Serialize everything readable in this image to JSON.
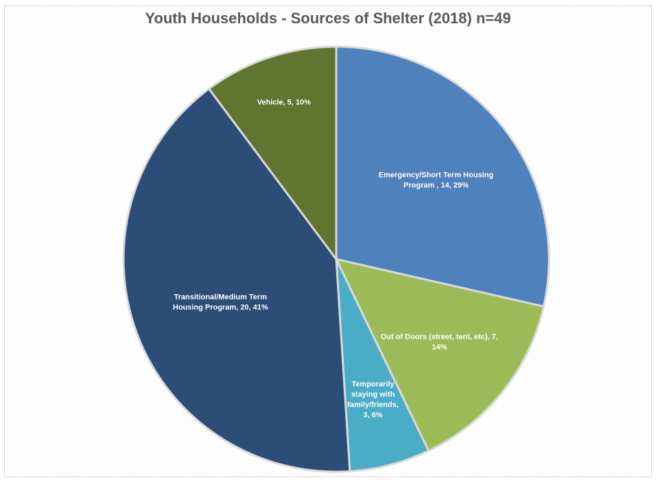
{
  "chart_data": {
    "type": "pie",
    "title": "Youth Households - Sources of Shelter (2018) n=49",
    "slices": [
      {
        "label_lines": [
          "Emergency/Short Term Housing",
          "Program , 14, 29%"
        ],
        "category": "Emergency/Short Term Housing Program",
        "value": 14,
        "percent": 29,
        "color": "#4F81BD"
      },
      {
        "label_lines": [
          "Out of Doors (street, tent, etc), 7,",
          "14%"
        ],
        "category": "Out of Doors (street, tent, etc)",
        "value": 7,
        "percent": 14,
        "color": "#9BBB59"
      },
      {
        "label_lines": [
          "Temporarily",
          "staying with",
          "family/friends,",
          "3, 6%"
        ],
        "category": "Temporarily staying with family/friends",
        "value": 3,
        "percent": 6,
        "color": "#4BACC6"
      },
      {
        "label_lines": [
          "Transitional/Medium Term",
          "Housing Program, 20, 41%"
        ],
        "category": "Transitional/Medium Term Housing Program",
        "value": 20,
        "percent": 41,
        "color": "#2C4D75"
      },
      {
        "label_lines": [
          "Vehicle, 5, 10%"
        ],
        "category": "Vehicle",
        "value": 5,
        "percent": 10,
        "color": "#5F7530"
      }
    ],
    "start": "12 o'clock",
    "direction": "clockwise",
    "legend": "none",
    "slice_border_color": "#d9d9d9"
  }
}
